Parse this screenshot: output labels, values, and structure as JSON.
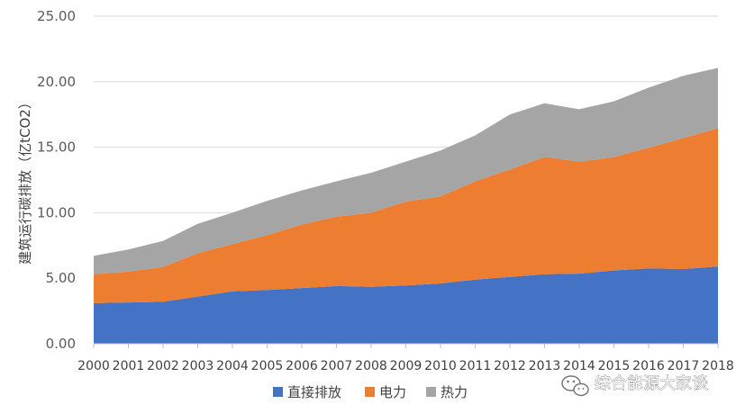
{
  "chart_data": {
    "type": "area",
    "stacked": true,
    "title": "",
    "xlabel": "",
    "ylabel": "建筑运行碳排放（亿tCO2）",
    "ylim": [
      0,
      25
    ],
    "yticks": [
      "0.00",
      "5.00",
      "10.00",
      "15.00",
      "20.00",
      "25.00"
    ],
    "grid": true,
    "legend_position": "bottom",
    "categories": [
      "2000",
      "2001",
      "2002",
      "2003",
      "2004",
      "2005",
      "2006",
      "2007",
      "2008",
      "2009",
      "2010",
      "2011",
      "2012",
      "2013",
      "2014",
      "2015",
      "2016",
      "2017",
      "2018"
    ],
    "series": [
      {
        "name": "直接排放",
        "color": "#4472C4",
        "values": [
          3.1,
          3.15,
          3.2,
          3.6,
          4.0,
          4.1,
          4.25,
          4.4,
          4.35,
          4.45,
          4.6,
          4.9,
          5.1,
          5.3,
          5.35,
          5.6,
          5.75,
          5.7,
          5.9
        ]
      },
      {
        "name": "电力",
        "color": "#ED7D31",
        "values": [
          2.2,
          2.35,
          2.65,
          3.3,
          3.6,
          4.2,
          4.85,
          5.3,
          5.65,
          6.4,
          6.65,
          7.5,
          8.2,
          8.95,
          8.55,
          8.65,
          9.2,
          10.0,
          10.55
        ]
      },
      {
        "name": "热力",
        "color": "#A5A5A5",
        "values": [
          1.4,
          1.7,
          2.0,
          2.25,
          2.4,
          2.6,
          2.6,
          2.7,
          3.05,
          3.05,
          3.5,
          3.5,
          4.2,
          4.1,
          4.0,
          4.25,
          4.6,
          4.75,
          4.6
        ]
      }
    ]
  },
  "watermark": {
    "text": "综合能源大家谈",
    "icon": "wechat-icon"
  }
}
